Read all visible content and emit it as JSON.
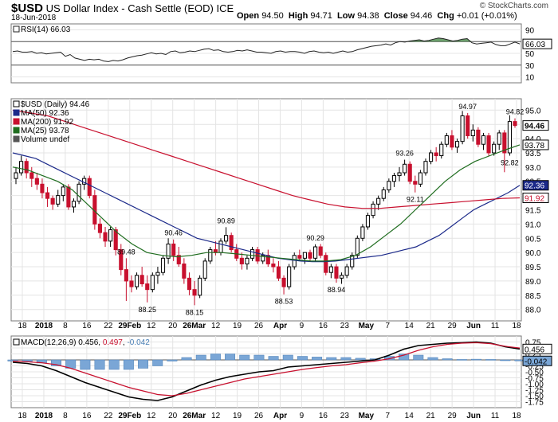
{
  "header": {
    "symbol": "$USD",
    "name": "US Dollar Index - Cash Settle (EOD)",
    "exchange": "ICE",
    "date": "18-Jun-2018",
    "credit": "© StockCharts.com",
    "quote": {
      "open_label": "Open",
      "open": "94.50",
      "high_label": "High",
      "high": "94.71",
      "low_label": "Low",
      "low": "94.38",
      "close_label": "Close",
      "close": "94.46",
      "chg_label": "Chg",
      "chg": "+0.01 (+0.01%)"
    }
  },
  "chart_data": [
    {
      "type": "line",
      "panel": "rsi",
      "legend": "RSI(14) 66.03",
      "ylim": [
        0,
        100
      ],
      "y_ticks": [
        10,
        30,
        50,
        70,
        90
      ],
      "reference_lines": [
        30,
        70
      ],
      "last_value": 66.03,
      "values": [
        53,
        54,
        52,
        52,
        53,
        50,
        51,
        49,
        50,
        51,
        52,
        45,
        48,
        42,
        40,
        38,
        40,
        39,
        40,
        37,
        36,
        38,
        37,
        39,
        42,
        44,
        46,
        47,
        49,
        51,
        49,
        50,
        48,
        53,
        54,
        51,
        52,
        54,
        53,
        55,
        57,
        58,
        55,
        56,
        53,
        52,
        53,
        55,
        54,
        56,
        54,
        52,
        52,
        51,
        50,
        53,
        54,
        52,
        53,
        53,
        52,
        50,
        53,
        54,
        52,
        51,
        52,
        50,
        52,
        54,
        52,
        53,
        56,
        58,
        60,
        62,
        63,
        64,
        66,
        64,
        68,
        70,
        69,
        71,
        72,
        73,
        71,
        72,
        74,
        76,
        75,
        73,
        71,
        72,
        74,
        75,
        68,
        66,
        67,
        68,
        69,
        65,
        63,
        63,
        66,
        69,
        66.03
      ]
    },
    {
      "type": "candlestick",
      "panel": "price",
      "legend": [
        "$USD (Daily) 94.46",
        "MA(50) 92.36",
        "MA(200) 91.92",
        "MA(25) 93.78",
        "Volume undef"
      ],
      "ylim": [
        87.6,
        95.4
      ],
      "y_ticks": [
        88.0,
        88.5,
        89.0,
        89.5,
        90.0,
        90.5,
        91.0,
        91.5,
        92.0,
        92.5,
        93.0,
        93.5,
        94.0,
        94.5,
        95.0
      ],
      "x_ticks": [
        "18",
        "2018",
        "8",
        "16",
        "22",
        "29Feb",
        "12",
        "20",
        "26Mar",
        "12",
        "19",
        "26",
        "Apr",
        "9",
        "16",
        "23",
        "May",
        "7",
        "14",
        "21",
        "29",
        "Jun",
        "11",
        "18"
      ],
      "price_labels": [
        "88.25",
        "89.48",
        "90.46",
        "88.15",
        "90.89",
        "88.53",
        "90.29",
        "88.94",
        "93.26",
        "92.11",
        "94.97",
        "92.82",
        "94.82"
      ],
      "ohlc": [
        [
          92.6,
          93.0,
          92.4,
          92.8
        ],
        [
          92.8,
          93.4,
          92.7,
          93.2
        ],
        [
          93.2,
          93.3,
          92.6,
          92.8
        ],
        [
          92.8,
          93.0,
          92.3,
          92.6
        ],
        [
          92.6,
          92.8,
          92.2,
          92.4
        ],
        [
          92.4,
          92.6,
          91.9,
          92.1
        ],
        [
          92.1,
          92.3,
          91.6,
          91.9
        ],
        [
          91.9,
          92.0,
          91.5,
          91.7
        ],
        [
          91.7,
          92.2,
          91.6,
          92.0
        ],
        [
          92.0,
          92.4,
          91.8,
          92.3
        ],
        [
          92.3,
          92.4,
          91.5,
          91.6
        ],
        [
          91.6,
          91.9,
          91.4,
          91.8
        ],
        [
          91.8,
          92.5,
          91.7,
          92.4
        ],
        [
          92.4,
          92.7,
          92.2,
          92.6
        ],
        [
          92.6,
          92.7,
          91.9,
          92.0
        ],
        [
          92.0,
          92.2,
          90.8,
          91.0
        ],
        [
          91.0,
          91.2,
          90.5,
          90.7
        ],
        [
          90.7,
          90.9,
          90.2,
          90.4
        ],
        [
          90.4,
          90.9,
          90.2,
          90.8
        ],
        [
          90.8,
          90.9,
          89.9,
          90.1
        ],
        [
          90.1,
          90.3,
          89.2,
          89.4
        ],
        [
          89.4,
          89.8,
          88.3,
          89.0
        ],
        [
          89.0,
          89.2,
          88.6,
          88.8
        ],
        [
          88.8,
          89.3,
          88.7,
          89.2
        ],
        [
          89.2,
          89.5,
          88.8,
          88.9
        ],
        [
          88.9,
          89.2,
          88.25,
          88.7
        ],
        [
          88.7,
          89.3,
          88.6,
          89.2
        ],
        [
          89.2,
          89.5,
          88.9,
          89.3
        ],
        [
          89.3,
          89.9,
          89.2,
          89.8
        ],
        [
          89.8,
          90.5,
          89.6,
          90.3
        ],
        [
          90.3,
          90.46,
          89.7,
          89.9
        ],
        [
          89.9,
          90.2,
          89.5,
          89.6
        ],
        [
          89.6,
          89.8,
          88.9,
          89.1
        ],
        [
          89.1,
          89.3,
          88.5,
          88.7
        ],
        [
          88.7,
          89.0,
          88.15,
          88.5
        ],
        [
          88.5,
          89.2,
          88.4,
          89.1
        ],
        [
          89.1,
          89.8,
          89.0,
          89.7
        ],
        [
          89.7,
          90.2,
          89.6,
          90.1
        ],
        [
          90.1,
          90.4,
          89.9,
          90.0
        ],
        [
          90.0,
          90.5,
          89.9,
          90.4
        ],
        [
          90.4,
          90.89,
          90.3,
          90.6
        ],
        [
          90.6,
          90.7,
          90.0,
          90.1
        ],
        [
          90.1,
          90.3,
          89.7,
          89.8
        ],
        [
          89.8,
          90.0,
          89.4,
          89.6
        ],
        [
          89.6,
          89.9,
          89.4,
          89.8
        ],
        [
          89.8,
          90.2,
          89.7,
          90.1
        ],
        [
          90.1,
          90.2,
          89.6,
          89.7
        ],
        [
          89.7,
          90.0,
          89.6,
          89.9
        ],
        [
          89.9,
          90.1,
          89.5,
          89.6
        ],
        [
          89.6,
          89.8,
          89.3,
          89.5
        ],
        [
          89.5,
          89.7,
          89.0,
          89.1
        ],
        [
          89.1,
          89.2,
          88.53,
          88.8
        ],
        [
          88.8,
          89.6,
          88.7,
          89.5
        ],
        [
          89.5,
          90.0,
          89.4,
          89.9
        ],
        [
          89.9,
          90.1,
          89.7,
          89.8
        ],
        [
          89.8,
          90.0,
          89.6,
          90.0
        ],
        [
          90.0,
          90.1,
          89.7,
          89.8
        ],
        [
          89.8,
          90.29,
          89.7,
          90.2
        ],
        [
          90.2,
          90.3,
          89.8,
          89.9
        ],
        [
          89.9,
          90.0,
          89.2,
          89.3
        ],
        [
          89.3,
          89.6,
          89.1,
          89.5
        ],
        [
          89.5,
          89.6,
          88.94,
          89.1
        ],
        [
          89.1,
          89.3,
          88.9,
          89.2
        ],
        [
          89.2,
          89.6,
          89.1,
          89.5
        ],
        [
          89.5,
          90.0,
          89.4,
          89.9
        ],
        [
          89.9,
          90.6,
          89.8,
          90.5
        ],
        [
          90.5,
          91.0,
          90.4,
          90.9
        ],
        [
          90.9,
          91.4,
          90.8,
          91.3
        ],
        [
          91.3,
          91.8,
          91.2,
          91.7
        ],
        [
          91.7,
          92.0,
          91.5,
          91.9
        ],
        [
          91.9,
          92.3,
          91.8,
          92.2
        ],
        [
          92.2,
          92.6,
          92.1,
          92.5
        ],
        [
          92.5,
          92.8,
          92.3,
          92.7
        ],
        [
          92.7,
          93.0,
          92.5,
          92.8
        ],
        [
          92.8,
          93.26,
          92.7,
          93.1
        ],
        [
          93.1,
          93.2,
          92.4,
          92.5
        ],
        [
          92.5,
          92.7,
          92.11,
          92.4
        ],
        [
          92.4,
          92.9,
          92.3,
          92.8
        ],
        [
          92.8,
          93.3,
          92.7,
          93.2
        ],
        [
          93.2,
          93.6,
          93.1,
          93.5
        ],
        [
          93.5,
          93.7,
          93.2,
          93.4
        ],
        [
          93.4,
          93.9,
          93.3,
          93.8
        ],
        [
          93.8,
          94.2,
          93.7,
          94.1
        ],
        [
          94.1,
          94.3,
          93.6,
          93.7
        ],
        [
          93.7,
          94.0,
          93.5,
          93.9
        ],
        [
          93.9,
          94.97,
          93.8,
          94.8
        ],
        [
          94.8,
          94.9,
          94.0,
          94.1
        ],
        [
          94.1,
          94.5,
          93.9,
          94.3
        ],
        [
          94.3,
          94.4,
          93.7,
          93.8
        ],
        [
          93.8,
          94.2,
          93.6,
          94.1
        ],
        [
          94.1,
          94.2,
          93.4,
          93.5
        ],
        [
          93.5,
          93.9,
          93.4,
          93.8
        ],
        [
          93.8,
          94.3,
          93.6,
          94.2
        ],
        [
          94.2,
          94.3,
          92.82,
          93.5
        ],
        [
          93.5,
          94.82,
          93.4,
          94.6
        ],
        [
          94.6,
          94.71,
          94.38,
          94.46
        ]
      ],
      "series": [
        {
          "name": "MA(50) 92.36",
          "values": [
            93.5,
            93.4,
            93.3,
            93.1,
            92.9,
            92.7,
            92.5,
            92.3,
            92.1,
            91.9,
            91.7,
            91.5,
            91.3,
            91.1,
            90.9,
            90.7,
            90.5,
            90.4,
            90.3,
            90.2,
            90.1,
            90.0,
            89.9,
            89.8,
            89.75,
            89.7,
            89.68,
            89.68,
            89.7,
            89.75,
            89.8,
            89.85,
            89.9,
            90.0,
            90.1,
            90.2,
            90.4,
            90.6,
            90.9,
            91.2,
            91.5,
            91.7,
            91.9,
            92.1,
            92.36
          ]
        },
        {
          "name": "MA(200) 91.92",
          "values": [
            95.0,
            94.9,
            94.8,
            94.6,
            94.4,
            94.2,
            94.0,
            93.8,
            93.6,
            93.4,
            93.2,
            93.0,
            92.8,
            92.6,
            92.4,
            92.2,
            92.0,
            91.85,
            91.7,
            91.6,
            91.55,
            91.55,
            91.6,
            91.65,
            91.7,
            91.75,
            91.8,
            91.85,
            91.9,
            91.92
          ]
        },
        {
          "name": "MA(25) 93.78",
          "values": [
            93.0,
            92.9,
            92.7,
            92.5,
            92.2,
            91.7,
            91.2,
            90.7,
            90.3,
            90.0,
            89.9,
            89.85,
            89.9,
            90.0,
            90.0,
            89.95,
            89.9,
            89.85,
            89.8,
            89.75,
            89.7,
            89.7,
            89.75,
            89.9,
            90.2,
            90.6,
            91.0,
            91.5,
            92.0,
            92.5,
            92.9,
            93.2,
            93.4,
            93.6,
            93.78
          ]
        }
      ]
    },
    {
      "type": "line",
      "panel": "macd",
      "legend": [
        "MACD(12,26,9) 0.456",
        "0.497",
        "-0.042"
      ],
      "ylim": [
        -2.0,
        1.0
      ],
      "y_ticks": [
        -1.75,
        -1.5,
        -1.25,
        -1.0,
        -0.75,
        -0.5,
        -0.25,
        0.0,
        0.25,
        0.5,
        0.75
      ],
      "series": [
        {
          "name": "MACD(12,26,9) 0.456",
          "values": [
            -0.1,
            -0.15,
            -0.25,
            -0.45,
            -0.7,
            -0.95,
            -1.15,
            -1.35,
            -1.55,
            -1.65,
            -1.7,
            -1.55,
            -1.3,
            -1.05,
            -0.85,
            -0.7,
            -0.6,
            -0.5,
            -0.45,
            -0.3,
            -0.25,
            -0.2,
            -0.15,
            -0.1,
            -0.05,
            0.0,
            0.2,
            0.45,
            0.6,
            0.65,
            0.7,
            0.72,
            0.75,
            0.7,
            0.55,
            0.456
          ]
        },
        {
          "name": "0.497",
          "values": [
            -0.05,
            -0.08,
            -0.12,
            -0.2,
            -0.35,
            -0.55,
            -0.75,
            -0.95,
            -1.15,
            -1.3,
            -1.45,
            -1.5,
            -1.4,
            -1.25,
            -1.1,
            -0.95,
            -0.8,
            -0.7,
            -0.6,
            -0.5,
            -0.4,
            -0.32,
            -0.25,
            -0.2,
            -0.12,
            -0.05,
            0.05,
            0.2,
            0.4,
            0.55,
            0.65,
            0.7,
            0.72,
            0.68,
            0.57,
            0.497
          ]
        },
        {
          "name": "-0.042",
          "values": [
            -0.05,
            -0.07,
            -0.13,
            -0.25,
            -0.35,
            -0.4,
            -0.4,
            -0.4,
            -0.4,
            -0.35,
            -0.25,
            -0.05,
            0.1,
            0.2,
            0.25,
            0.25,
            0.2,
            0.2,
            0.15,
            0.2,
            0.15,
            0.12,
            0.1,
            0.1,
            0.07,
            0.05,
            0.15,
            0.25,
            0.2,
            0.1,
            0.05,
            0.02,
            0.03,
            0.02,
            -0.02,
            -0.042
          ]
        }
      ]
    }
  ]
}
